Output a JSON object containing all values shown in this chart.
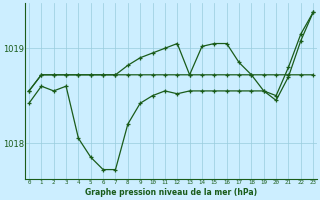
{
  "xlabel": "Graphe pression niveau de la mer (hPa)",
  "background_color": "#cceeff",
  "grid_color": "#99ccdd",
  "line_color": "#1a5c1a",
  "hours": [
    0,
    1,
    2,
    3,
    4,
    5,
    6,
    7,
    8,
    9,
    10,
    11,
    12,
    13,
    14,
    15,
    16,
    17,
    18,
    19,
    20,
    21,
    22,
    23
  ],
  "s_flat": [
    1018.55,
    1018.72,
    1018.72,
    1018.72,
    1018.72,
    1018.72,
    1018.72,
    1018.72,
    1018.72,
    1018.72,
    1018.72,
    1018.72,
    1018.72,
    1018.72,
    1018.72,
    1018.72,
    1018.72,
    1018.72,
    1018.72,
    1018.72,
    1018.72,
    1018.72,
    1018.72,
    1018.72
  ],
  "s_max": [
    1018.55,
    1018.72,
    1018.72,
    1018.72,
    1018.72,
    1018.72,
    1018.72,
    1018.72,
    1018.82,
    1018.9,
    1018.95,
    1019.0,
    1019.05,
    1018.72,
    1019.02,
    1019.05,
    1019.05,
    1018.85,
    1018.72,
    1018.55,
    1018.5,
    1018.8,
    1019.15,
    1019.38
  ],
  "s_dip": [
    1018.42,
    1018.6,
    1018.55,
    1018.6,
    1018.05,
    1017.85,
    1017.72,
    1017.72,
    1018.2,
    1018.42,
    1018.5,
    1018.55,
    1018.52,
    1018.55,
    1018.55,
    1018.55,
    1018.55,
    1018.55,
    1018.55,
    1018.55,
    1018.45,
    1018.7,
    1019.08,
    1019.38
  ],
  "ylim_min": 1017.62,
  "ylim_max": 1019.48,
  "yticks": [
    1018,
    1019
  ],
  "xlim_min": -0.3,
  "xlim_max": 23.3
}
